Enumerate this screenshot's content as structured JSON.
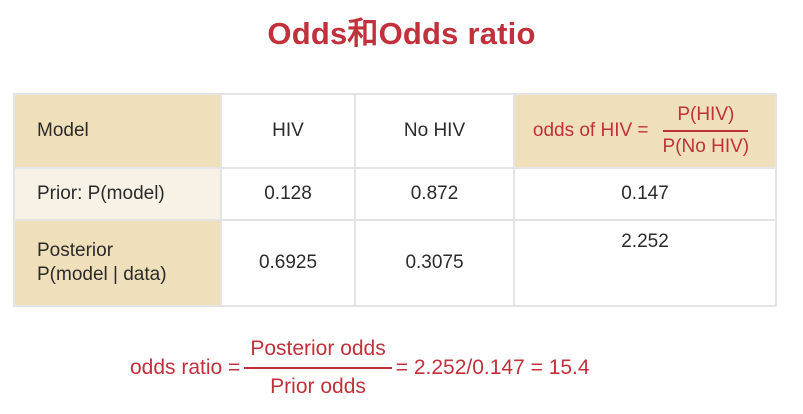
{
  "title": "Odds和Odds ratio",
  "table": {
    "header": {
      "model_label": "Model",
      "col_hiv": "HIV",
      "col_no_hiv": "No HIV",
      "odds_formula": {
        "lhs": "odds of HIV =",
        "numerator": "P(HIV)",
        "denominator": "P(No HIV)"
      }
    },
    "rows": [
      {
        "label": "Prior: P(model)",
        "hiv": "0.128",
        "no_hiv": "0.872",
        "odds": "0.147"
      },
      {
        "label_line1": "Posterior",
        "label_line2": "P(model | data)",
        "hiv": "0.6925",
        "no_hiv": "0.3075",
        "odds": "2.252"
      }
    ]
  },
  "odds_ratio": {
    "lhs": "odds ratio =",
    "numerator": "Posterior odds",
    "denominator": "Prior odds",
    "rhs": "= 2.252/0.147 = 15.4"
  },
  "colors": {
    "accent_red": "#c0313b",
    "header_shade": "#efdfba",
    "row_shade": "#f8f2e6"
  }
}
